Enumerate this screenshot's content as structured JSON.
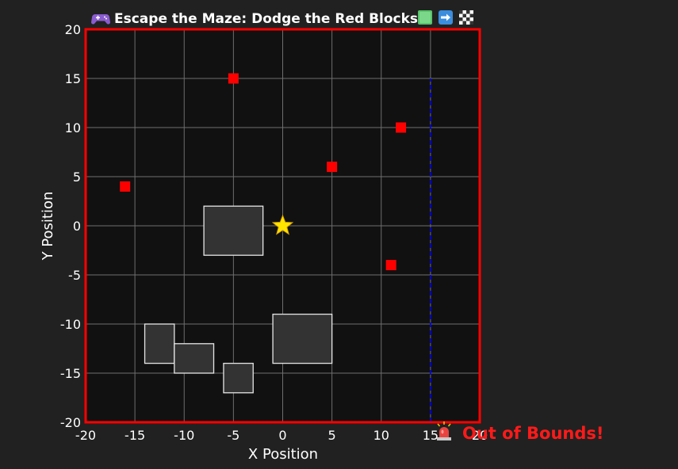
{
  "chart_data": {
    "type": "scatter",
    "title": "Escape the Maze: Dodge the Red Blocks!",
    "xlabel": "X Position",
    "ylabel": "Y Position",
    "xlim": [
      -20,
      20
    ],
    "ylim": [
      -20,
      20
    ],
    "xticks": [
      -20,
      -15,
      -10,
      -5,
      0,
      5,
      10,
      15,
      20
    ],
    "yticks": [
      -20,
      -15,
      -10,
      -5,
      0,
      5,
      10,
      15,
      20
    ],
    "grid": true,
    "player": {
      "x": 0,
      "y": 0,
      "marker": "star",
      "color": "#ffe400"
    },
    "enemies": {
      "marker": "square",
      "color": "#ff0000",
      "points": [
        {
          "x": -16,
          "y": 4
        },
        {
          "x": -5,
          "y": 15
        },
        {
          "x": 5,
          "y": 6
        },
        {
          "x": 12,
          "y": 10
        },
        {
          "x": 11,
          "y": -4
        }
      ]
    },
    "obstacles": [
      {
        "x0": -8,
        "y0": -3,
        "x1": -2,
        "y1": 2
      },
      {
        "x0": -14,
        "y0": -14,
        "x1": -11,
        "y1": -10
      },
      {
        "x0": -11,
        "y0": -15,
        "x1": -7,
        "y1": -12
      },
      {
        "x0": -6,
        "y0": -17,
        "x1": -3,
        "y1": -14
      },
      {
        "x0": -1,
        "y0": -14,
        "x1": 5,
        "y1": -9
      }
    ],
    "boundary_line": {
      "x": 15,
      "y_from": -20,
      "y_to": 15,
      "style": "dashed",
      "color": "#0000ff"
    },
    "annotation": {
      "text": "Out of Bounds!",
      "x": 17,
      "y": -21,
      "color": "#ff1a1a",
      "icon": "siren-icon"
    },
    "title_icons": [
      "gamepad-icon",
      "green-square-icon",
      "right-arrow-icon",
      "checkered-flag-icon"
    ]
  },
  "colors": {
    "background": "#212121",
    "plot_background": "#111111",
    "frame": "#ff0000",
    "grid": "#6e6e6e",
    "obstacle_fill": "#333333",
    "obstacle_edge": "#e6e6e6"
  }
}
